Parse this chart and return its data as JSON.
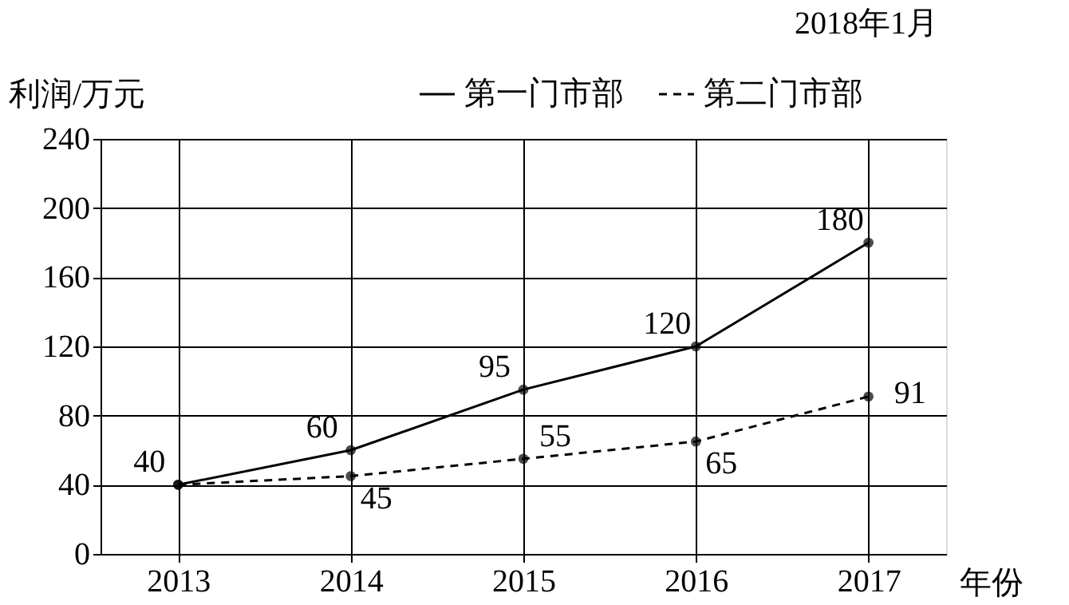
{
  "chart_data": {
    "type": "line",
    "annotations": [
      "2018年1月"
    ],
    "ylabel": "利润/万元",
    "xlabel": "年份",
    "categories": [
      "2013",
      "2014",
      "2015",
      "2016",
      "2017"
    ],
    "series": [
      {
        "name": "第一门市部",
        "color": "#000000",
        "line_style": "solid",
        "values": [
          40,
          60,
          95,
          120,
          180
        ],
        "value_labels": [
          "40",
          "60",
          "95",
          "120",
          "180"
        ]
      },
      {
        "name": "第二门市部",
        "color": "#000000",
        "line_style": "dashed",
        "values": [
          40,
          45,
          55,
          65,
          91
        ],
        "value_labels": [
          null,
          "45",
          "55",
          "65",
          "91"
        ]
      }
    ],
    "ylim": [
      0,
      240
    ],
    "yticks": [
      0,
      40,
      80,
      120,
      160,
      200,
      240
    ],
    "grid": true,
    "legend": "top",
    "marker": "circle"
  }
}
